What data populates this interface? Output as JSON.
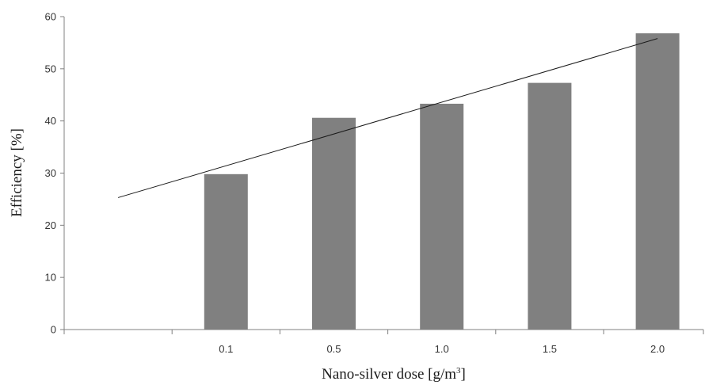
{
  "chart_data": {
    "type": "bar",
    "categories": [
      "",
      "0.1",
      "0.5",
      "1.0",
      "1.5",
      "2.0"
    ],
    "values": [
      null,
      29.8,
      40.6,
      43.3,
      47.3,
      56.8
    ],
    "series": [
      {
        "values": [
          null,
          29.8,
          40.6,
          43.3,
          47.3,
          56.8
        ]
      }
    ],
    "trendline": {
      "type": "linear",
      "start": [
        0,
        25.3
      ],
      "end": [
        5,
        55.8
      ]
    },
    "title": "",
    "xlabel": "Nano-silver dose [g/m",
    "xlabel_superscript": "3",
    "xlabel_suffix": "]",
    "ylabel": "Efficiency [%]",
    "ylim": [
      0,
      60
    ],
    "yticks": [
      0,
      10,
      20,
      30,
      40,
      50,
      60
    ],
    "grid": false,
    "legend": "none",
    "colors": {
      "bar": "#808080",
      "trendline": "#1a1a1a",
      "axis": "#808080"
    }
  }
}
